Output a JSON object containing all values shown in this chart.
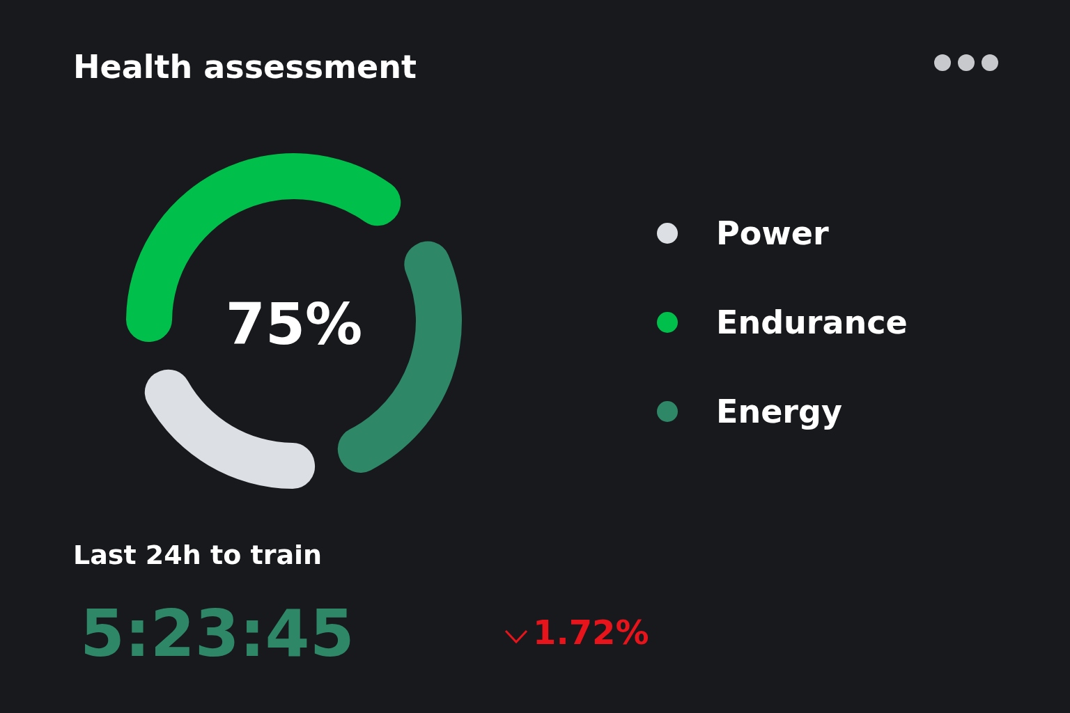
{
  "chart_data": {
    "type": "donut",
    "title": "Health assessment",
    "categories": [
      "Power",
      "Endurance",
      "Energy"
    ],
    "values": [
      24,
      44,
      32
    ],
    "colors": [
      "#dcdfe3",
      "#00c04b",
      "#2e8867"
    ],
    "legend": "right",
    "annotations": [
      "75%",
      "Last 24h to train",
      "5:23:45",
      "1.72%"
    ]
  }
}
